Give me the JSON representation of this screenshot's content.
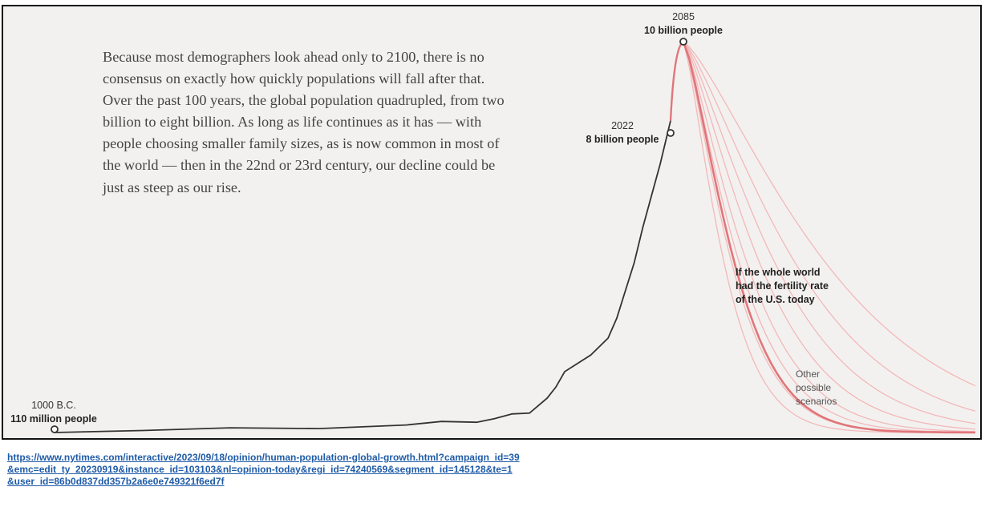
{
  "intro_text": "Because most demographers look ahead only to 2100, there is no consensus on exactly how quickly populations will fall after that. Over the past 100 years, the global population quadrupled, from two billion to eight billion. As long as life continues as it has — with people choosing smaller family sizes, as is now common in most of the world — then in the 22nd or 23rd century, our decline could be just as steep as our rise.",
  "source_url_lines": [
    "https://www.nytimes.com/interactive/2023/09/18/opinion/human-population-global-growth.html?campaign_id=39",
    "&emc=edit_ty_20230919&instance_id=103103&nl=opinion-today&regi_id=74240569&segment_id=145128&te=1",
    "&user_id=86b0d837dd357b2a6e0e749321f6ed7f"
  ],
  "colors": {
    "background": "#f3f1ef",
    "historical_line": "#333333",
    "projection_main": "#e0767a",
    "projection_other": "#f2b8ba",
    "link": "#1f5ba8"
  },
  "chart_data": {
    "type": "line",
    "units": "billion people",
    "annotations": [
      {
        "year_label": "1000 B.C.",
        "value_label": "110 million people",
        "x": -1000,
        "y": 0.11
      },
      {
        "year_label": "2022",
        "value_label": "8 billion people",
        "x": 2022,
        "y": 8.0
      },
      {
        "year_label": "2085",
        "value_label": "10 billion people",
        "x": 2085,
        "y": 10.0
      }
    ],
    "series": [
      {
        "role": "historical",
        "x": [
          -1000,
          -500,
          0,
          500,
          1000,
          1200,
          1400,
          1500,
          1600,
          1700,
          1800,
          1850,
          1900,
          1930,
          1950,
          1960,
          1970,
          1980,
          1990,
          2000,
          2010,
          2022
        ],
        "y": [
          0.11,
          0.16,
          0.23,
          0.21,
          0.3,
          0.39,
          0.37,
          0.46,
          0.58,
          0.6,
          0.98,
          1.26,
          1.65,
          2.07,
          2.5,
          3.0,
          3.7,
          4.4,
          5.3,
          6.1,
          6.9,
          8.0
        ]
      },
      {
        "role": "projection-rise",
        "x": [
          2022,
          2040,
          2060,
          2075,
          2085
        ],
        "y": [
          8.0,
          8.9,
          9.6,
          9.9,
          10.0
        ]
      }
    ],
    "projection_scenarios": {
      "highlighted_label": "If the whole world had the fertility rate of the U.S. today",
      "others_label": "Other possible scenarios",
      "count_other": 8
    },
    "axes": {
      "x_visible": false,
      "y_visible": false
    },
    "grid": false
  }
}
